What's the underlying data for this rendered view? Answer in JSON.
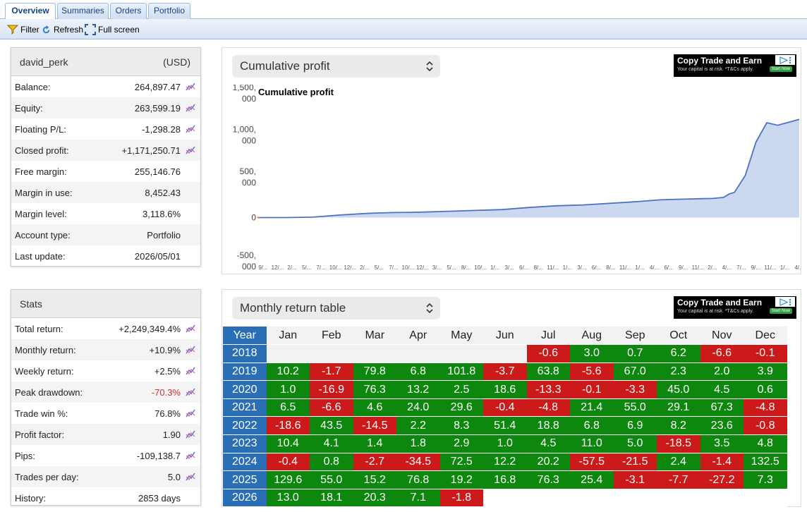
{
  "tabs": [
    "Overview",
    "Summaries",
    "Orders",
    "Portfolio"
  ],
  "toolbar": {
    "filter": "Filter",
    "refresh": "Refresh",
    "fullscreen": "Full screen"
  },
  "account": {
    "name": "david_perk",
    "currency": "(USD)",
    "rows": [
      {
        "label": "Balance:",
        "value": "264,897.47",
        "spark": true
      },
      {
        "label": "Equity:",
        "value": "263,599.19",
        "spark": true
      },
      {
        "label": "Floating P/L:",
        "value": "-1,298.28",
        "spark": true
      },
      {
        "label": "Closed profit:",
        "value": "+1,171,250.71",
        "spark": true
      },
      {
        "label": "Free margin:",
        "value": "255,146.76",
        "spark": false
      },
      {
        "label": "Margin in use:",
        "value": "8,452.43",
        "spark": false
      },
      {
        "label": "Margin level:",
        "value": "3,118.6%",
        "spark": false
      },
      {
        "label": "Account type:",
        "value": "Portfolio",
        "spark": false
      },
      {
        "label": "Last update:",
        "value": "2026/05/01",
        "spark": false
      }
    ]
  },
  "stats": {
    "title": "Stats",
    "rows": [
      {
        "label": "Total return:",
        "value": "+2,249,349.4%",
        "spark": true
      },
      {
        "label": "Monthly return:",
        "value": "+10.9%",
        "spark": true
      },
      {
        "label": "Weekly return:",
        "value": "+2.5%",
        "spark": true
      },
      {
        "label": "Peak drawdown:",
        "value": "-70.3%",
        "spark": true,
        "red": true
      },
      {
        "label": "Trade win %:",
        "value": "76.8%",
        "spark": true
      },
      {
        "label": "Profit factor:",
        "value": "1.90",
        "spark": true
      },
      {
        "label": "Pips:",
        "value": "-109,138.7",
        "spark": true
      },
      {
        "label": "Trades per day:",
        "value": "5.0",
        "spark": true
      },
      {
        "label": "History:",
        "value": "2853 days",
        "spark": false
      }
    ]
  },
  "ad": {
    "title": "Copy Trade and Earn",
    "sub": "Your capital is at risk. *T&Cs apply.",
    "button": "Start Now"
  },
  "profit_chart": {
    "selector": "Cumulative profit",
    "title": "Cumulative profit",
    "y_tick_labels": [
      {
        "l1": "1,500,",
        "l2": "000"
      },
      {
        "l1": "1,000,",
        "l2": "000"
      },
      {
        "l1": "500,",
        "l2": "000"
      },
      {
        "l1": "0",
        "l2": ""
      },
      {
        "l1": "-500,",
        "l2": "000"
      }
    ],
    "x_tick_labels": [
      "9/...",
      "12/...",
      "2/...",
      "5/...",
      "7/...",
      "10/...",
      "12/...",
      "2/...",
      "5/...",
      "7/...",
      "10/...",
      "12/...",
      "3/...",
      "5/...",
      "8/...",
      "10/...",
      "1/...",
      "3/...",
      "6/...",
      "8/...",
      "11/...",
      "1/...",
      "3/...",
      "6/...",
      "8/...",
      "11/...",
      "1/...",
      "4/...",
      "6/...",
      "9/...",
      "11/...",
      "2/...",
      "4/...",
      "7/...",
      "9/...",
      "11/...",
      "1/...",
      "4/..."
    ]
  },
  "chart_data": {
    "type": "area",
    "title": "Cumulative profit",
    "ylim": [
      -500000,
      1500000
    ],
    "y_ticks": [
      -500000,
      0,
      500000,
      1000000,
      1500000
    ],
    "x": [
      0,
      0.05,
      0.1,
      0.15,
      0.2,
      0.22,
      0.25,
      0.28,
      0.3,
      0.35,
      0.4,
      0.45,
      0.5,
      0.55,
      0.6,
      0.65,
      0.7,
      0.74,
      0.76,
      0.8,
      0.82,
      0.84,
      0.86,
      0.87,
      0.88,
      0.9,
      0.92,
      0.94,
      0.96,
      1.0
    ],
    "values": [
      0,
      0,
      5000,
      30000,
      50000,
      55000,
      60000,
      62000,
      65000,
      75000,
      85000,
      95000,
      120000,
      140000,
      150000,
      170000,
      190000,
      210000,
      215000,
      222000,
      225000,
      228000,
      240000,
      280000,
      300000,
      500000,
      900000,
      1130000,
      1100000,
      1170000
    ],
    "series_color": "#4c72c4",
    "fill_color": "#ccd8f0",
    "grid": false
  },
  "monthly": {
    "selector": "Monthly return table",
    "header": [
      "Year",
      "Jan",
      "Feb",
      "Mar",
      "Apr",
      "May",
      "Jun",
      "Jul",
      "Aug",
      "Sep",
      "Oct",
      "Nov",
      "Dec"
    ],
    "rows": [
      {
        "year": "2018",
        "cells": [
          "",
          "",
          "",
          "",
          "",
          "",
          "-0.6",
          "3.0",
          "0.7",
          "6.2",
          "-6.6",
          "-0.1"
        ]
      },
      {
        "year": "2019",
        "cells": [
          "10.2",
          "-1.7",
          "79.8",
          "6.8",
          "101.8",
          "-3.7",
          "63.8",
          "-5.6",
          "67.0",
          "2.3",
          "2.0",
          "3.9"
        ]
      },
      {
        "year": "2020",
        "cells": [
          "1.0",
          "-16.9",
          "76.3",
          "13.2",
          "2.5",
          "18.6",
          "-13.3",
          "-0.1",
          "-3.3",
          "45.0",
          "4.5",
          "0.6"
        ]
      },
      {
        "year": "2021",
        "cells": [
          "6.5",
          "-6.6",
          "4.6",
          "24.0",
          "29.6",
          "-0.4",
          "-4.8",
          "21.4",
          "55.0",
          "29.1",
          "67.3",
          "-4.8"
        ]
      },
      {
        "year": "2022",
        "cells": [
          "-18.6",
          "43.5",
          "-14.5",
          "2.2",
          "8.3",
          "51.4",
          "18.8",
          "6.8",
          "6.9",
          "8.2",
          "23.6",
          "-0.8"
        ]
      },
      {
        "year": "2023",
        "cells": [
          "10.4",
          "4.1",
          "1.4",
          "1.8",
          "2.9",
          "1.0",
          "4.5",
          "11.0",
          "5.0",
          "-18.5",
          "3.5",
          "4.8"
        ]
      },
      {
        "year": "2024",
        "cells": [
          "-0.4",
          "0.8",
          "-2.7",
          "-34.5",
          "72.5",
          "12.2",
          "20.2",
          "-57.5",
          "-21.5",
          "2.4",
          "-1.4",
          "132.5"
        ]
      },
      {
        "year": "2025",
        "cells": [
          "129.6",
          "55.0",
          "15.2",
          "76.8",
          "19.2",
          "16.8",
          "76.3",
          "25.4",
          "-3.1",
          "-7.7",
          "-27.2",
          "7.3"
        ]
      },
      {
        "year": "2026",
        "cells": [
          "13.0",
          "18.1",
          "20.3",
          "7.1",
          "-1.8",
          "-",
          "-",
          "-",
          "-",
          "-",
          "-",
          "-"
        ]
      }
    ]
  }
}
